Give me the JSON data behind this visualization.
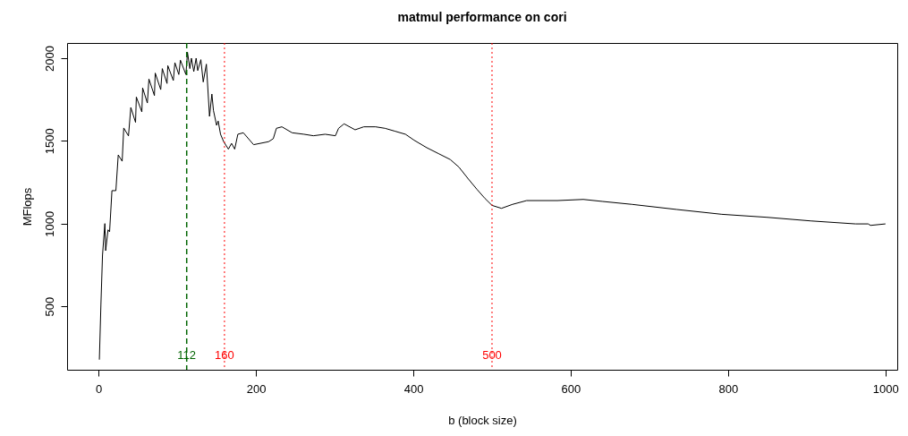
{
  "chart_data": {
    "type": "line",
    "title": "matmul performance on cori",
    "xlabel": "b (block size)",
    "ylabel": "MFlops",
    "x": [
      1,
      3,
      5,
      8,
      9,
      12,
      14,
      17,
      22,
      25,
      30,
      32,
      38,
      41,
      47,
      48,
      55,
      56,
      62,
      64,
      71,
      72,
      79,
      81,
      87,
      88,
      95,
      97,
      102,
      104,
      111,
      113,
      116,
      118,
      121,
      124,
      126,
      130,
      133,
      137,
      141,
      144,
      146,
      150,
      152,
      155,
      159,
      165,
      169,
      173,
      177,
      184,
      197,
      216,
      222,
      226,
      233,
      246,
      261,
      273,
      288,
      301,
      305,
      312,
      326,
      337,
      352,
      364,
      377,
      390,
      401,
      417,
      432,
      447,
      458,
      470,
      481,
      491,
      500,
      512,
      526,
      544,
      583,
      616,
      640,
      678,
      735,
      792,
      849,
      905,
      962,
      978,
      981,
      1000
    ],
    "series": [
      {
        "color": "#000000",
        "values": [
          177,
          511,
          809,
          1000,
          836,
          962,
          950,
          1199,
          1199,
          1415,
          1377,
          1578,
          1530,
          1702,
          1612,
          1765,
          1675,
          1820,
          1729,
          1874,
          1774,
          1910,
          1810,
          1937,
          1847,
          1955,
          1865,
          1973,
          1901,
          1988,
          1901,
          2036,
          1937,
          2000,
          1919,
          2000,
          1925,
          1991,
          1856,
          1964,
          1648,
          1783,
          1684,
          1594,
          1620,
          1540,
          1495,
          1450,
          1485,
          1450,
          1540,
          1549,
          1477,
          1495,
          1513,
          1576,
          1585,
          1549,
          1540,
          1531,
          1540,
          1531,
          1576,
          1603,
          1567,
          1585,
          1585,
          1576,
          1558,
          1540,
          1504,
          1459,
          1423,
          1387,
          1341,
          1269,
          1206,
          1152,
          1110,
          1092,
          1116,
          1139,
          1139,
          1146,
          1134,
          1116,
          1085,
          1056,
          1038,
          1016,
          998,
          998,
          989,
          998
        ]
      }
    ],
    "xlim": [
      -40,
      1015
    ],
    "ylim": [
      116,
      2092
    ],
    "xticks": [
      0,
      200,
      400,
      600,
      800,
      1000
    ],
    "yticks": [
      500,
      1000,
      1500,
      2000
    ],
    "grid": false,
    "marker": "none",
    "line_style": "solid",
    "ref_lines": [
      {
        "axis": "x",
        "value": 112,
        "label": "112",
        "color": "#006400",
        "line_style": "dashed"
      },
      {
        "axis": "x",
        "value": 160,
        "label": "160",
        "color": "#ff0000",
        "line_style": "dotted"
      },
      {
        "axis": "x",
        "value": 500,
        "label": "500",
        "color": "#ff0000",
        "line_style": "dotted"
      }
    ]
  }
}
